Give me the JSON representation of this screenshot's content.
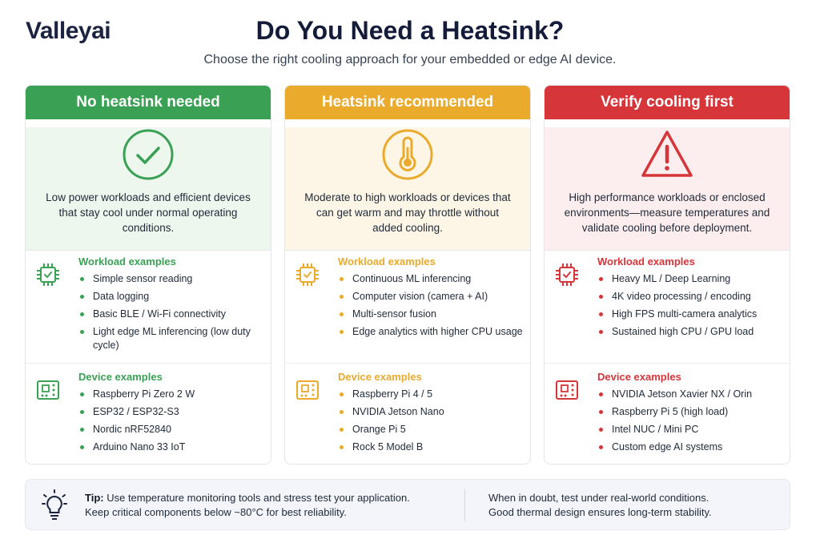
{
  "brand": "Valleyai",
  "title": "Do You Need a Heatsink?",
  "subtitle": "Choose the right cooling approach for your embedded or edge AI device.",
  "cards": [
    {
      "heading": "No heatsink needed",
      "icon": "check-circle-icon",
      "accent": "#3aa154",
      "tint": "#edf7ee",
      "description": "Low power workloads and efficient devices that stay cool under normal operating conditions.",
      "workload_title": "Workload examples",
      "workload": [
        "Simple sensor reading",
        "Data logging",
        "Basic BLE / Wi-Fi connectivity",
        "Light edge ML inferencing (low duty cycle)"
      ],
      "device_title": "Device examples",
      "devices": [
        "Raspberry Pi Zero 2 W",
        "ESP32 / ESP32-S3",
        "Nordic nRF52840",
        "Arduino Nano 33 IoT"
      ]
    },
    {
      "heading": "Heatsink recommended",
      "icon": "thermometer-icon",
      "accent": "#eaaa2c",
      "tint": "#fdf6e7",
      "description": "Moderate to high workloads or devices that can get warm and may throttle without added cooling.",
      "workload_title": "Workload examples",
      "workload": [
        "Continuous ML inferencing",
        "Computer vision (camera + AI)",
        "Multi-sensor fusion",
        "Edge analytics with higher CPU usage"
      ],
      "device_title": "Device examples",
      "devices": [
        "Raspberry Pi 4 / 5",
        "NVIDIA Jetson Nano",
        "Orange Pi 5",
        "Rock 5 Model B"
      ]
    },
    {
      "heading": "Verify cooling first",
      "icon": "warning-triangle-icon",
      "accent": "#d6363a",
      "tint": "#fceeee",
      "description": "High performance workloads or enclosed environments—measure temperatures and validate cooling before deployment.",
      "workload_title": "Workload examples",
      "workload": [
        "Heavy ML / Deep Learning",
        "4K video processing / encoding",
        "High FPS multi-camera analytics",
        "Sustained high CPU / GPU load"
      ],
      "device_title": "Device examples",
      "devices": [
        "NVIDIA Jetson Xavier NX / Orin",
        "Raspberry Pi 5 (high load)",
        "Intel NUC / Mini PC",
        "Custom edge AI systems"
      ]
    }
  ],
  "tip": {
    "icon": "lightbulb-icon",
    "label": "Tip:",
    "line1": "Use temperature monitoring tools and stress test your application.",
    "line2": "Keep critical components below ~80°C for best reliability.",
    "right1": "When in doubt, test under real-world conditions.",
    "right2": "Good thermal design ensures long-term stability."
  }
}
